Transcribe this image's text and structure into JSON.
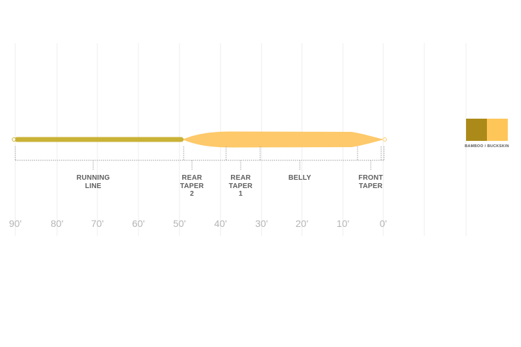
{
  "segments": [
    {
      "key": "running_line",
      "lines": [
        "RUNNING",
        "LINE"
      ]
    },
    {
      "key": "rear_taper_2",
      "lines": [
        "REAR",
        "TAPER",
        "2"
      ]
    },
    {
      "key": "rear_taper_1",
      "lines": [
        "REAR",
        "TAPER",
        "1"
      ]
    },
    {
      "key": "belly",
      "lines": [
        "BELLY"
      ]
    },
    {
      "key": "front_taper",
      "lines": [
        "FRONT",
        "TAPER"
      ]
    }
  ],
  "ticks": [
    "90'",
    "80'",
    "70'",
    "60'",
    "50'",
    "40'",
    "30'",
    "20'",
    "10'",
    "0'"
  ],
  "colors": {
    "running_line": "#c9b236",
    "head": "#fdc96a",
    "bamboo": "#ab8a1a",
    "buckskin": "#fec659",
    "grid": "#ececec",
    "bracket": "#9a9a9a"
  },
  "legend": {
    "caption": "BAMBOO / BUCKSKIN"
  }
}
